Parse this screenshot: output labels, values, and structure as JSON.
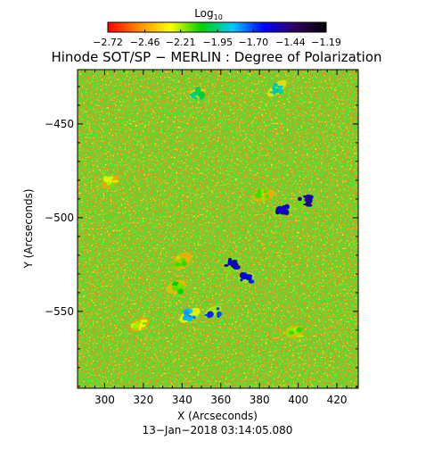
{
  "chart_data": {
    "type": "heatmap",
    "title": "Hinode SOT/SP − MERLIN : Degree of Polarization",
    "xlabel": "X (Arcseconds)",
    "ylabel": "Y (Arcseconds)",
    "xlim": [
      286,
      431
    ],
    "ylim": [
      -591,
      -421
    ],
    "xticks": [
      300,
      320,
      340,
      360,
      380,
      400,
      420
    ],
    "xtick_labels": [
      "300",
      "320",
      "340",
      "360",
      "380",
      "400",
      "420"
    ],
    "yticks": [
      -450,
      -500,
      -550
    ],
    "ytick_labels": [
      "−450",
      "−500",
      "−550"
    ],
    "colorbar": {
      "label": "Log",
      "label_subscript": "10",
      "range": [
        -2.72,
        -1.19
      ],
      "ticks": [
        -2.72,
        -2.46,
        -2.21,
        -1.95,
        -1.7,
        -1.44,
        -1.19
      ],
      "tick_labels": [
        "−2.72",
        "−2.46",
        "−2.21",
        "−1.95",
        "−1.70",
        "−1.44",
        "−1.19"
      ],
      "colors": [
        "#ff0000",
        "#ff8c00",
        "#ffff00",
        "#00d200",
        "#00c8ff",
        "#0000ff",
        "#300060",
        "#000000"
      ]
    },
    "background_level": -2.55,
    "features": [
      {
        "x": 392,
        "y": -496,
        "level": -1.5
      },
      {
        "x": 404,
        "y": -491,
        "level": -1.45
      },
      {
        "x": 366,
        "y": -525,
        "level": -1.48
      },
      {
        "x": 373,
        "y": -532,
        "level": -1.55
      },
      {
        "x": 356,
        "y": -550,
        "level": -1.6
      },
      {
        "x": 344,
        "y": -552,
        "level": -1.75
      },
      {
        "x": 337,
        "y": -537,
        "level": -2.05
      },
      {
        "x": 382,
        "y": -488,
        "level": -2.1
      },
      {
        "x": 348,
        "y": -434,
        "level": -1.9
      },
      {
        "x": 389,
        "y": -431,
        "level": -1.85
      },
      {
        "x": 303,
        "y": -481,
        "level": -2.15
      },
      {
        "x": 340,
        "y": -523,
        "level": -2.1
      },
      {
        "x": 398,
        "y": -561,
        "level": -2.1
      },
      {
        "x": 318,
        "y": -557,
        "level": -2.15
      }
    ],
    "date_label": "13−Jan−2018 03:14:05.080"
  }
}
